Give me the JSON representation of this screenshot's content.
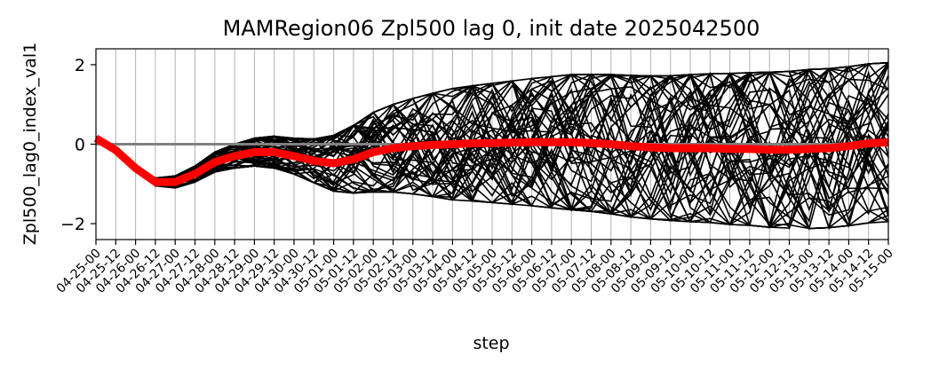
{
  "chart_data": {
    "type": "line",
    "title": "MAMRegion06 Zpl500 lag 0, init date 2025042500",
    "xlabel": "step",
    "ylabel": "Zpl500_lag0_index_val1",
    "ylim": [
      -2.4,
      2.4
    ],
    "yticks": [
      -2,
      0,
      2
    ],
    "grid": "vertical",
    "x": [
      "04-25-00",
      "04-25-12",
      "04-26-00",
      "04-26-12",
      "04-27-00",
      "04-27-12",
      "04-28-00",
      "04-28-12",
      "04-29-00",
      "04-29-12",
      "04-30-00",
      "04-30-12",
      "05-01-00",
      "05-01-12",
      "05-02-00",
      "05-02-12",
      "05-03-00",
      "05-03-12",
      "05-04-00",
      "05-04-12",
      "05-05-00",
      "05-05-12",
      "05-06-00",
      "05-06-12",
      "05-07-00",
      "05-07-12",
      "05-08-00",
      "05-08-12",
      "05-09-00",
      "05-09-12",
      "05-10-00",
      "05-10-12",
      "05-11-00",
      "05-11-12",
      "05-12-00",
      "05-12-12",
      "05-13-00",
      "05-13-12",
      "05-14-00",
      "05-14-12",
      "05-15-00"
    ],
    "reference_line": {
      "y": 0,
      "color": "#808080"
    },
    "ensemble": {
      "members": 50,
      "color": "#000000",
      "spread_max": [
        0.05,
        0.05,
        0.05,
        0.1,
        0.15,
        0.2,
        0.25,
        0.3,
        0.35,
        0.4,
        0.45,
        0.55,
        0.7,
        0.85,
        1.0,
        1.1,
        1.2,
        1.3,
        1.4,
        1.45,
        1.5,
        1.55,
        1.6,
        1.65,
        1.7,
        1.72,
        1.75,
        1.78,
        1.8,
        1.82,
        1.85,
        1.87,
        1.9,
        1.92,
        1.95,
        1.97,
        2.0,
        2.0,
        2.0,
        2.0,
        2.0
      ]
    },
    "series": [
      {
        "values": [
          0.15,
          -0.15,
          -0.6,
          -0.95,
          -0.95,
          -0.75,
          -0.45,
          -0.3,
          -0.2,
          -0.2,
          -0.3,
          -0.42,
          -0.48,
          -0.38,
          -0.2,
          -0.1,
          -0.05,
          -0.02,
          0.0,
          0.02,
          0.03,
          0.04,
          0.05,
          0.05,
          0.05,
          0.03,
          0.0,
          -0.05,
          -0.08,
          -0.1,
          -0.1,
          -0.1,
          -0.12,
          -0.12,
          -0.14,
          -0.14,
          -0.12,
          -0.1,
          -0.05,
          0.02,
          0.05
        ],
        "color": "#ff0000"
      }
    ]
  }
}
